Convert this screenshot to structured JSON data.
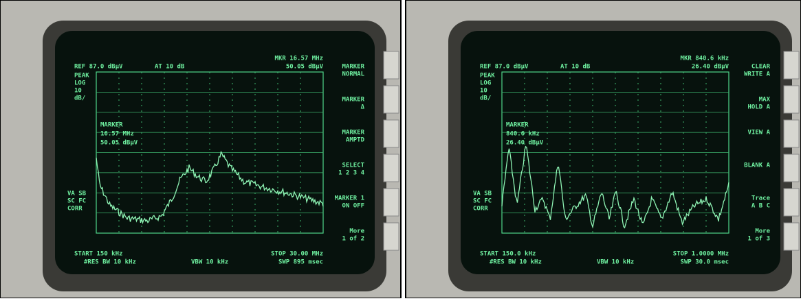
{
  "panels": [
    {
      "ref": "REF 87.0 dBµV",
      "atten": "AT 10 dB",
      "mkr_freq": "MKR 16.57 MHz",
      "mkr_amp": "50.05 dBµV",
      "scale": [
        "PEAK",
        "LOG",
        "10",
        "dB/"
      ],
      "readout": [
        "MARKER",
        "16.57 MHz",
        "50.05 dBµV"
      ],
      "side": [
        "VA SB",
        "SC FC",
        "CORR"
      ],
      "start": "START 150 kHz",
      "res_bw": "#RES BW 10 kHz",
      "vbw": "VBW 10 kHz",
      "stop": "STOP 30.00 MHz",
      "sweep": "SWP 895 msec",
      "softkeys": [
        [
          "MARKER",
          "NORMAL"
        ],
        [
          "MARKER",
          "Δ"
        ],
        [
          "MARKER",
          "AMPTD"
        ],
        [
          "SELECT",
          "1 2 3 4"
        ],
        [
          "MARKER 1",
          "ON OFF"
        ],
        [
          "More",
          "1 of 2"
        ]
      ]
    },
    {
      "ref": "REF 87.0 dBµV",
      "atten": "AT 10 dB",
      "mkr_freq": "MKR 840.6 kHz",
      "mkr_amp": "26.40 dBµV",
      "scale": [
        "PEAK",
        "LOG",
        "10",
        "dB/"
      ],
      "readout": [
        "MARKER",
        "840.6 kHz",
        "26.40 dBµV"
      ],
      "side": [
        "VA SB",
        "SC FC",
        "CORR"
      ],
      "start": "START 150.0 kHz",
      "res_bw": "#RES BW 10 kHz",
      "vbw": "VBW 10 kHz",
      "stop": "STOP 1.0000 MHz",
      "sweep": "SWP 30.0 msec",
      "softkeys": [
        [
          "CLEAR",
          "WRITE A"
        ],
        [
          "MAX",
          "HOLD A"
        ],
        [
          "VIEW A"
        ],
        [
          "BLANK A"
        ],
        [
          "Trace",
          "A B C"
        ],
        [
          "More",
          "1 of 3"
        ]
      ]
    }
  ]
}
